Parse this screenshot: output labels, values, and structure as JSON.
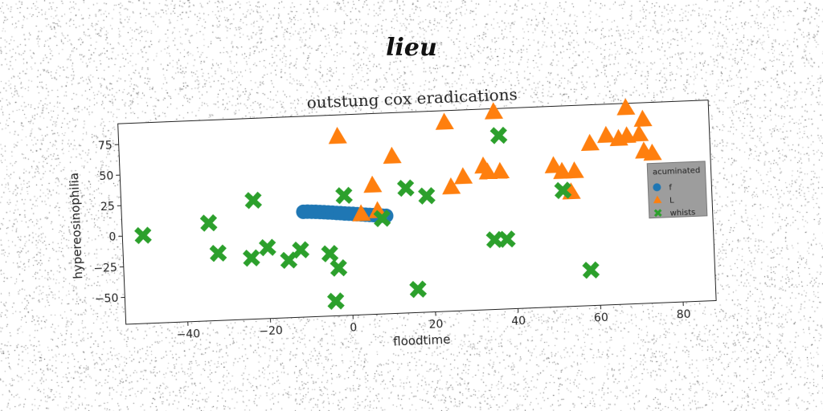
{
  "suptitle": "lieu",
  "chart_data": {
    "type": "scatter",
    "title": "outstung cox eradications",
    "xlabel": "floodtime",
    "ylabel": "hypereosinophilia",
    "xlim": [
      -55,
      88
    ],
    "ylim": [
      -72,
      92
    ],
    "xticks": [
      -40,
      -20,
      0,
      20,
      40,
      60,
      80
    ],
    "yticks": [
      -50,
      -25,
      0,
      25,
      50,
      75
    ],
    "grid": false,
    "legend": {
      "title": "acuminated",
      "placement": "right"
    },
    "series": [
      {
        "name": "f",
        "marker": "circle",
        "color": "#1f77b4",
        "points": [
          [
            -11,
            14
          ],
          [
            -10,
            14
          ],
          [
            -9,
            13.8
          ],
          [
            -8,
            13.6
          ],
          [
            -7,
            13.3
          ],
          [
            -6,
            13
          ],
          [
            -5,
            12.7
          ],
          [
            -4,
            12.4
          ],
          [
            -3,
            12
          ],
          [
            -2,
            11.7
          ],
          [
            -1,
            11.3
          ],
          [
            0,
            11
          ],
          [
            1,
            10.7
          ],
          [
            2,
            10.3
          ],
          [
            3,
            10
          ],
          [
            4,
            9.6
          ],
          [
            5,
            9.3
          ],
          [
            6,
            9
          ],
          [
            7,
            8.7
          ],
          [
            8,
            8.3
          ],
          [
            9,
            8
          ]
        ]
      },
      {
        "name": "L",
        "marker": "triangle",
        "color": "#ff7f0e",
        "points": [
          [
            -2,
            74
          ],
          [
            3,
            10
          ],
          [
            6,
            33
          ],
          [
            7,
            12
          ],
          [
            11,
            56
          ],
          [
            24,
            82
          ],
          [
            25,
            29
          ],
          [
            28,
            37
          ],
          [
            33,
            45
          ],
          [
            34,
            40
          ],
          [
            36,
            89
          ],
          [
            37,
            40
          ],
          [
            50,
            43
          ],
          [
            52,
            38
          ],
          [
            54,
            21
          ],
          [
            55,
            38
          ],
          [
            59,
            60
          ],
          [
            63,
            66
          ],
          [
            66,
            63
          ],
          [
            68,
            65
          ],
          [
            67,
            101
          ],
          [
            68,
            88
          ],
          [
            71,
            66
          ],
          [
            72,
            78
          ],
          [
            72,
            52
          ],
          [
            74,
            50
          ]
        ]
      },
      {
        "name": "whists",
        "marker": "x",
        "color": "#2ca02c",
        "points": [
          [
            -50,
            0
          ],
          [
            -34,
            8
          ],
          [
            -32,
            -17
          ],
          [
            -23,
            25
          ],
          [
            -24,
            -22
          ],
          [
            -20,
            -14
          ],
          [
            -15,
            -25
          ],
          [
            -12,
            -17
          ],
          [
            -5,
            -21
          ],
          [
            -4,
            -60
          ],
          [
            -3,
            -33
          ],
          [
            -1,
            26
          ],
          [
            8,
            6
          ],
          [
            14,
            30
          ],
          [
            19,
            23
          ],
          [
            16,
            -53
          ],
          [
            37,
            70
          ],
          [
            35,
            -15
          ],
          [
            38,
            -15
          ],
          [
            52,
            23
          ],
          [
            58,
            -43
          ]
        ]
      }
    ]
  }
}
